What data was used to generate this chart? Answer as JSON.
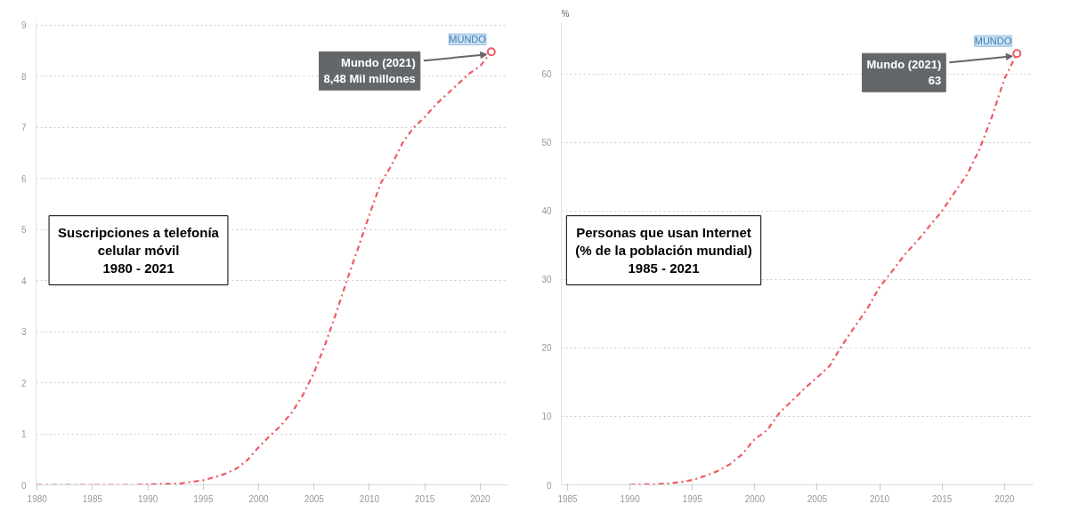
{
  "chart_data": [
    {
      "type": "line",
      "title": "Suscripciones a telefonía\ncelular móvil\n1980 - 2021",
      "x": [
        1980,
        1981,
        1982,
        1983,
        1984,
        1985,
        1986,
        1987,
        1988,
        1989,
        1990,
        1991,
        1992,
        1993,
        1994,
        1995,
        1996,
        1997,
        1998,
        1999,
        2000,
        2001,
        2002,
        2003,
        2004,
        2005,
        2006,
        2007,
        2008,
        2009,
        2010,
        2011,
        2012,
        2013,
        2014,
        2015,
        2016,
        2017,
        2018,
        2019,
        2020,
        2021
      ],
      "series": [
        {
          "name": "MUNDO",
          "color": "#ee5a63",
          "values": [
            0,
            0,
            0,
            0,
            0,
            0,
            0,
            0,
            0,
            0,
            0.01,
            0.02,
            0.02,
            0.03,
            0.06,
            0.09,
            0.15,
            0.22,
            0.32,
            0.49,
            0.74,
            0.96,
            1.16,
            1.42,
            1.76,
            2.2,
            2.75,
            3.37,
            4.03,
            4.65,
            5.29,
            5.9,
            6.26,
            6.7,
            7.0,
            7.2,
            7.45,
            7.65,
            7.85,
            8.05,
            8.2,
            8.48
          ]
        }
      ],
      "xlim": [
        1979.9,
        2022.5
      ],
      "ylim": [
        0,
        9.05
      ],
      "xticks": [
        1980,
        1985,
        1990,
        1995,
        2000,
        2005,
        2010,
        2015,
        2020
      ],
      "yticks": [
        0,
        1,
        2,
        3,
        4,
        5,
        6,
        7,
        8,
        9
      ],
      "grid": "y",
      "line_style": "dashdot",
      "annotations": [
        {
          "text": "Mundo (2021)\n8,48 Mil millones",
          "x": 2021,
          "y": 8.48
        }
      ]
    },
    {
      "type": "line",
      "title": "Personas que usan Internet\n(% de la población mundial)\n1985 - 2021",
      "ylabel": "%",
      "x": [
        1990,
        1991,
        1992,
        1993,
        1994,
        1995,
        1996,
        1997,
        1998,
        1999,
        2000,
        2001,
        2002,
        2003,
        2004,
        2005,
        2006,
        2007,
        2008,
        2009,
        2010,
        2011,
        2012,
        2013,
        2014,
        2015,
        2016,
        2017,
        2018,
        2019,
        2020,
        2021
      ],
      "series": [
        {
          "name": "MUNDO",
          "color": "#ee5a63",
          "values": [
            0,
            0.1,
            0.1,
            0.2,
            0.4,
            0.7,
            1.3,
            2.0,
            3.0,
            4.5,
            6.7,
            8.0,
            10.6,
            12.3,
            14.1,
            15.7,
            17.4,
            20.4,
            23.1,
            25.7,
            28.9,
            31.2,
            33.6,
            35.6,
            37.8,
            40.0,
            42.7,
            45.3,
            49.0,
            53.8,
            59.3,
            63
          ]
        }
      ],
      "xlim": [
        1984.5,
        2022.3
      ],
      "ylim": [
        0,
        67.5
      ],
      "xticks": [
        1985,
        1990,
        1995,
        2000,
        2005,
        2010,
        2015,
        2020
      ],
      "yticks": [
        0,
        10,
        20,
        30,
        40,
        50,
        60
      ],
      "grid": "y",
      "line_style": "dashdot",
      "annotations": [
        {
          "text": "Mundo (2021)\n63",
          "x": 2021,
          "y": 63
        }
      ]
    }
  ]
}
